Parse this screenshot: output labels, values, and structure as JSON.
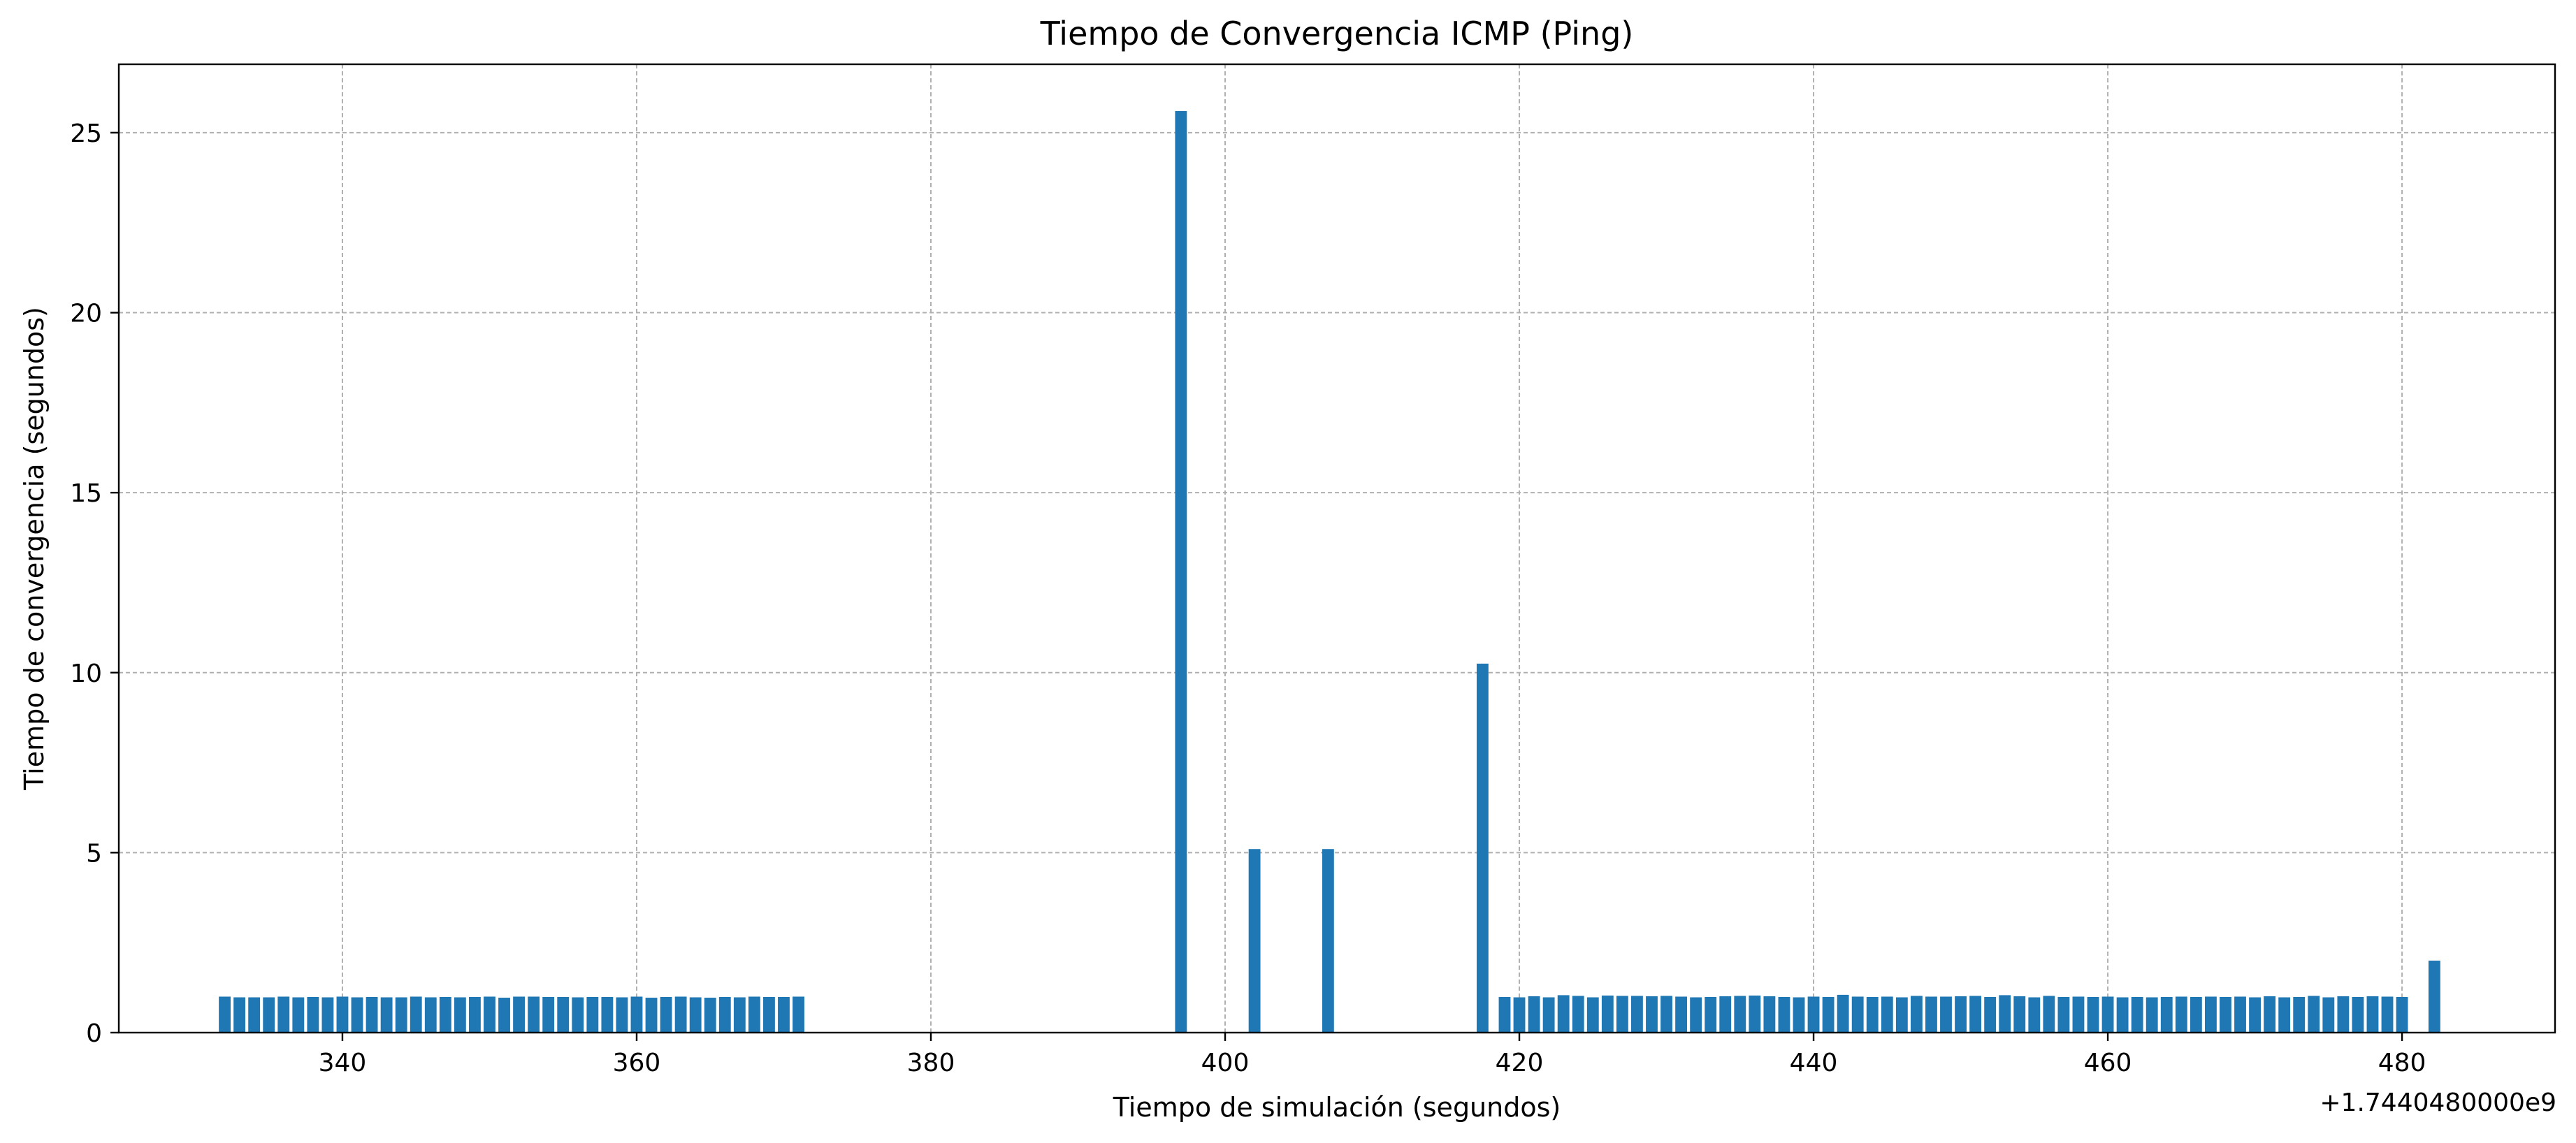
{
  "chart_data": {
    "type": "bar",
    "title": "Tiempo de Convergencia ICMP (Ping)",
    "xlabel": "Tiempo de simulación (segundos)",
    "ylabel": "Tiempo de convergencia (segundos)",
    "x_offset_label": "+1.7440480000e9",
    "xlim": [
      324.8,
      490.4
    ],
    "ylim": [
      0,
      26.9
    ],
    "xticks": [
      340,
      360,
      380,
      400,
      420,
      440,
      460,
      480
    ],
    "yticks": [
      0,
      5,
      10,
      15,
      20,
      25
    ],
    "grid": true,
    "color": "#1f77b4",
    "bar_width": 0.8,
    "series": [
      {
        "x": [
          332,
          333,
          334,
          335,
          336,
          337,
          338,
          339,
          340,
          341,
          342,
          343,
          344,
          345,
          346,
          347,
          348,
          349,
          350,
          351,
          352,
          353,
          354,
          355,
          356,
          357,
          358,
          359,
          360,
          361,
          362,
          363,
          364,
          365,
          366,
          367,
          368,
          369,
          370,
          371,
          397,
          402,
          407,
          417.5,
          419,
          420,
          421,
          422,
          423,
          424,
          425,
          426,
          427,
          428,
          429,
          430,
          431,
          432,
          433,
          434,
          435,
          436,
          437,
          438,
          439,
          440,
          441,
          442,
          443,
          444,
          445,
          446,
          447,
          448,
          449,
          450,
          451,
          452,
          453,
          454,
          455,
          456,
          457,
          458,
          459,
          460,
          461,
          462,
          463,
          464,
          465,
          466,
          467,
          468,
          469,
          470,
          471,
          472,
          473,
          474,
          475,
          476,
          477,
          478,
          479,
          480,
          482.2
        ],
        "values": [
          1.0,
          0.98,
          0.98,
          0.98,
          1.0,
          0.98,
          0.99,
          0.98,
          1.0,
          0.98,
          0.99,
          0.98,
          0.98,
          1.0,
          0.98,
          0.99,
          0.98,
          0.99,
          1.0,
          0.97,
          1.0,
          1.0,
          0.99,
          0.99,
          0.98,
          0.99,
          0.99,
          0.98,
          1.0,
          0.97,
          0.99,
          1.0,
          0.98,
          0.97,
          0.99,
          0.98,
          1.0,
          0.99,
          0.99,
          1.0,
          25.6,
          5.1,
          5.1,
          10.25,
          0.99,
          0.98,
          1.01,
          0.98,
          1.04,
          1.02,
          0.98,
          1.03,
          1.02,
          1.02,
          1.01,
          1.02,
          1.0,
          0.98,
          0.99,
          1.01,
          1.02,
          1.03,
          1.01,
          0.99,
          0.98,
          1.0,
          0.99,
          1.05,
          1.0,
          0.99,
          1.0,
          0.98,
          1.02,
          1.0,
          1.0,
          1.01,
          1.02,
          0.99,
          1.04,
          1.01,
          0.98,
          1.02,
          0.99,
          1.0,
          0.99,
          1.0,
          0.98,
          0.99,
          0.98,
          0.99,
          1.0,
          0.99,
          1.0,
          0.99,
          1.0,
          0.98,
          1.01,
          0.98,
          0.99,
          1.02,
          0.98,
          1.01,
          0.99,
          1.01,
          1.0,
          0.99,
          2.0
        ]
      }
    ]
  }
}
